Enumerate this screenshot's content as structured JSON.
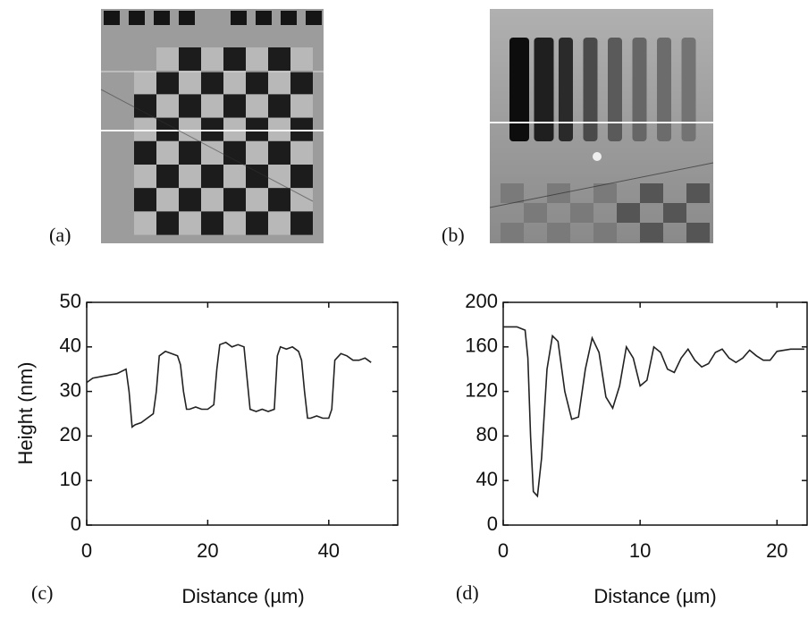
{
  "images": [
    {
      "label": "(a)"
    },
    {
      "label": "(b)"
    }
  ],
  "chart_data": [
    {
      "type": "line",
      "panel_label": "(c)",
      "x_label": "Distance (µm)",
      "y_label": "Height (nm)",
      "color": "#222222",
      "x": [
        0,
        1,
        3,
        5,
        6.5,
        7,
        7.5,
        8,
        9,
        10,
        11,
        11.5,
        12,
        13,
        14,
        15,
        15.5,
        16,
        16.5,
        17,
        18,
        19,
        20,
        21,
        21.5,
        22,
        23,
        24,
        25,
        26,
        26.5,
        27,
        28,
        29,
        30,
        31,
        31.5,
        32,
        33,
        34,
        35,
        35.5,
        36,
        36.5,
        37,
        38,
        39,
        40,
        40.5,
        41,
        42,
        43,
        44,
        45,
        46,
        47
      ],
      "values": [
        32,
        33,
        33.5,
        34,
        35,
        30,
        22,
        22.5,
        23,
        24,
        25,
        30,
        38,
        39,
        38.5,
        38,
        36,
        30,
        26,
        26,
        26.5,
        26,
        26,
        27,
        35,
        40.5,
        41,
        40,
        40.5,
        40,
        33,
        26,
        25.5,
        26,
        25.5,
        26,
        38,
        40,
        39.5,
        40,
        39,
        37,
        30,
        24,
        24,
        24.5,
        24,
        24,
        26,
        37,
        38.5,
        38,
        37,
        37,
        37.5,
        36.5
      ],
      "xlim": [
        0,
        51.4
      ],
      "xticks": [
        0,
        20,
        40
      ],
      "ylim": [
        0,
        50
      ],
      "yticks": [
        0,
        10,
        20,
        30,
        40,
        50
      ]
    },
    {
      "type": "line",
      "panel_label": "(d)",
      "x_label": "Distance (µm)",
      "color": "#222222",
      "x": [
        0,
        1,
        1.6,
        1.8,
        2,
        2.2,
        2.5,
        2.8,
        3.2,
        3.6,
        4,
        4.5,
        5,
        5.5,
        6,
        6.5,
        7,
        7.5,
        8,
        8.5,
        9,
        9.5,
        10,
        10.5,
        11,
        11.5,
        12,
        12.5,
        13,
        13.5,
        14,
        14.5,
        15,
        15.5,
        16,
        16.5,
        17,
        17.5,
        18,
        18.5,
        19,
        19.5,
        20,
        21,
        22
      ],
      "values": [
        178,
        178,
        175,
        150,
        80,
        30,
        26,
        60,
        140,
        170,
        165,
        120,
        95,
        97,
        140,
        168,
        155,
        115,
        105,
        125,
        160,
        150,
        125,
        130,
        160,
        155,
        140,
        137,
        150,
        158,
        148,
        142,
        145,
        155,
        158,
        150,
        146,
        150,
        157,
        152,
        148,
        148,
        156,
        158,
        158
      ],
      "xlim": [
        0,
        22.2
      ],
      "xticks": [
        0,
        10,
        20
      ],
      "ylim": [
        0,
        200
      ],
      "yticks": [
        0,
        40,
        80,
        120,
        160,
        200
      ]
    }
  ]
}
